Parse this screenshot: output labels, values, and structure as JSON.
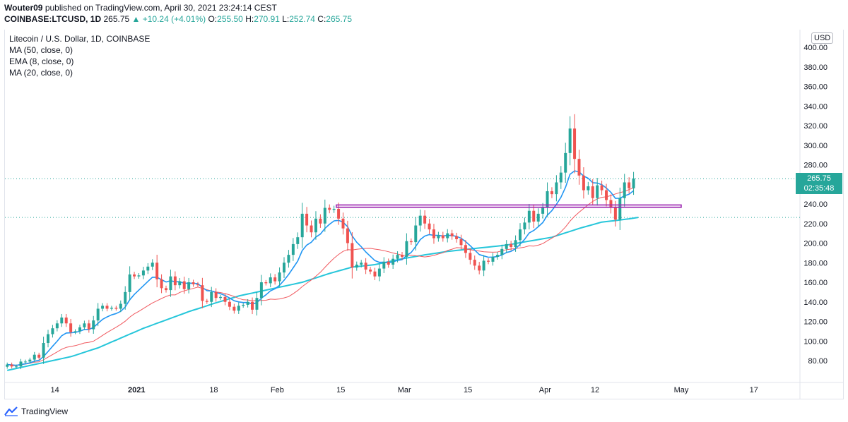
{
  "header": {
    "publisher": "Wouter09",
    "published_text": "published on TradingView.com, April 30, 2021 23:24:14 CEST",
    "symbol": "COINBASE:LTCUSD, 1D",
    "last": "265.75",
    "change": "▲ +10.24 (+4.01%)",
    "o_label": "O:",
    "o_value": "255.50",
    "h_label": "H:",
    "h_value": "270.91",
    "l_label": "L:",
    "l_value": "252.74",
    "c_label": "C:",
    "c_value": "265.75"
  },
  "legend": {
    "title": "Litecoin / U.S. Dollar, 1D, COINBASE",
    "indicators": [
      "MA (50, close, 0)",
      "EMA (8, close, 0)",
      "MA (20, close, 0)"
    ]
  },
  "price_axis": {
    "currency": "USD",
    "current_price": "265.75",
    "countdown": "02:35:48"
  },
  "footer": {
    "brand": "TradingView"
  },
  "colors": {
    "up": "#26a69a",
    "down": "#ef5350",
    "ema8": "#2196f3",
    "ma20": "#f0595f",
    "ma50": "#26c6da",
    "resistance": "#9c27b0",
    "support_dotted": "#26a69a"
  },
  "chart_data": {
    "type": "candlestick",
    "title": "Litecoin / U.S. Dollar, 1D, COINBASE",
    "ylim": [
      65,
      410
    ],
    "y_ticks": [
      80,
      100,
      120,
      140,
      160,
      180,
      200,
      220,
      240,
      260,
      280,
      300,
      320,
      340,
      360,
      380,
      400
    ],
    "x_tick_labels": [
      "14",
      "2021",
      "18",
      "Feb",
      "15",
      "Mar",
      "15",
      "Apr",
      "12",
      "May",
      "17"
    ],
    "x_tick_dates": [
      "2020-12-14",
      "2021-01-01",
      "2021-01-18",
      "2021-02-01",
      "2021-02-15",
      "2021-03-01",
      "2021-03-15",
      "2021-04-01",
      "2021-04-12",
      "2021-05-01",
      "2021-05-17"
    ],
    "x_range": [
      "2020-12-03",
      "2021-05-27"
    ],
    "candles_start": "2020-12-03",
    "closes": [
      76,
      74,
      74,
      79,
      79,
      81,
      86,
      83,
      98,
      107,
      113,
      118,
      124,
      118,
      109,
      110,
      114,
      118,
      112,
      121,
      133,
      136,
      133,
      134,
      133,
      138,
      150,
      168,
      166,
      167,
      172,
      176,
      180,
      163,
      154,
      152,
      166,
      157,
      161,
      153,
      160,
      158,
      157,
      141,
      140,
      150,
      144,
      145,
      140,
      135,
      131,
      136,
      137,
      140,
      132,
      144,
      160,
      159,
      165,
      161,
      170,
      180,
      188,
      199,
      206,
      230,
      218,
      211,
      225,
      220,
      236,
      234,
      235,
      225,
      215,
      200,
      175,
      178,
      180,
      173,
      171,
      166,
      174,
      181,
      178,
      184,
      188,
      186,
      202,
      201,
      218,
      228,
      220,
      214,
      205,
      208,
      205,
      210,
      207,
      204,
      198,
      190,
      183,
      177,
      172,
      182,
      181,
      186,
      188,
      194,
      199,
      196,
      203,
      214,
      221,
      233,
      222,
      230,
      236,
      253,
      250,
      262,
      272,
      292,
      317,
      286,
      269,
      254,
      258,
      246,
      259,
      254,
      244,
      236,
      224,
      246,
      262,
      256,
      266
    ],
    "series": [
      {
        "name": "EMA (8, close, 0)",
        "color": "#2196f3",
        "values": [
          76,
          75.6,
          75.2,
          76.0,
          76.7,
          77.7,
          79.5,
          80.2,
          84.2,
          89.3,
          94.6,
          99.8,
          105.4,
          108.2,
          108.4,
          108.8,
          110.0,
          111.8,
          111.8,
          113.8,
          118.1,
          122.1,
          124.6,
          126.7,
          128.1,
          130.3,
          134.7,
          142.1,
          147.6,
          152.0,
          156.5,
          160.9,
          165.2,
          165.1,
          162.7,
          160.3,
          161.6,
          160.5,
          160.6,
          158.9,
          159.1,
          158.9,
          158.6,
          154.7,
          151.4,
          151.1,
          149.5,
          148.3,
          146.5,
          143.9,
          141.1,
          140.0,
          139.3,
          139.4,
          137.8,
          139.1,
          143.8,
          147.2,
          151.2,
          153.4,
          157.0,
          162.1,
          167.9,
          174.8,
          181.7,
          192.4,
          198.0,
          200.9,
          206.2,
          209.2,
          215.0,
          219.2,
          222.7,
          223.2,
          221.4,
          216.7,
          207.4,
          200.9,
          196.3,
          191.0,
          186.6,
          182.1,
          180.4,
          180.5,
          179.9,
          180.8,
          182.4,
          183.1,
          187.3,
          190.4,
          196.6,
          203.6,
          207.2,
          208.7,
          207.9,
          207.9,
          207.3,
          207.9,
          207.7,
          206.9,
          204.9,
          201.6,
          197.4,
          192.9,
          188.3,
          186.9,
          185.6,
          185.7,
          186.2,
          187.9,
          190.4,
          191.6,
          194.2,
          198.9,
          203.8,
          210.3,
          212.9,
          216.7,
          221.0,
          228.4,
          233.2,
          239.6,
          246.8,
          256.9,
          270.3,
          273.8,
          272.7,
          268.5,
          266.2,
          261.7,
          261.3,
          259.7,
          256.3,
          251.8,
          245.7,
          245.8,
          248.3,
          249.9,
          253.5
        ]
      },
      {
        "name": "MA (20, close, 0)",
        "color": "#f0595f",
        "values": [
          76,
          75.0,
          74.7,
          75.8,
          76.4,
          77.2,
          78.4,
          78.8,
          80.9,
          83.5,
          86.2,
          88.9,
          91.6,
          93.5,
          94.4,
          95.3,
          96.6,
          98.0,
          98.7,
          99.8,
          102.6,
          105.7,
          108.7,
          111.4,
          114.1,
          117.0,
          120.2,
          124.4,
          127.8,
          130.3,
          133.2,
          136.1,
          138.9,
          141.1,
          143.4,
          145.5,
          147.1,
          147.1,
          149.6,
          151.2,
          152.6,
          153.7,
          155.1,
          153.7,
          152.4,
          151.1,
          150.1,
          149.5,
          148.5,
          147.1,
          145.5,
          143.6,
          142.1,
          141.9,
          141.1,
          141.5,
          141.5,
          141.6,
          142.8,
          142.5,
          143.0,
          144.1,
          145.4,
          148.3,
          151.6,
          155.6,
          159.0,
          162.3,
          166.2,
          170.2,
          175.2,
          180.1,
          184.6,
          188.4,
          191.6,
          193.4,
          193.0,
          193.7,
          194.2,
          194.6,
          194.7,
          193.9,
          193.2,
          192.3,
          191.2,
          189.9,
          188.8,
          187.7,
          187.4,
          187.7,
          187.1,
          186.6,
          185.9,
          186.5,
          187.4,
          188.9,
          190.1,
          192.5,
          193.8,
          195.4,
          195.2,
          194.3,
          193.2,
          192.5,
          191.9,
          191.2,
          190.9,
          190.7,
          190.9,
          192.2,
          193.3,
          193.9,
          194.6,
          195.1,
          195.9,
          197.2,
          197.0,
          197.9,
          199.5,
          202.4,
          205.1,
          207.9,
          211.6,
          216.4,
          222.4,
          227.4,
          231.6,
          235.3,
          239.2,
          242.6,
          245.2,
          246.8,
          247.3,
          248.6,
          250.2,
          251.6,
          252.7,
          254.7,
          256.4
        ]
      },
      {
        "name": "MA (50, close, 0)",
        "color": "#26c6da",
        "values": [
          70,
          71.0,
          72.0,
          73.0,
          74.0,
          75.0,
          76.0,
          77.0,
          78.0,
          79.0,
          80.0,
          81.0,
          82.0,
          83.0,
          84.0,
          85.5,
          87.0,
          88.5,
          90.0,
          91.5,
          93.0,
          95.0,
          97.0,
          99.0,
          101.0,
          103.0,
          105.0,
          107.0,
          109.0,
          111.0,
          113.0,
          114.7,
          116.4,
          118.1,
          119.8,
          121.5,
          123.2,
          124.9,
          126.6,
          128.3,
          130.0,
          131.5,
          133.0,
          134.5,
          136.0,
          137.5,
          139.0,
          140.4,
          141.8,
          143.2,
          144.6,
          146.0,
          147.0,
          148.0,
          149.0,
          150.0,
          151.0,
          152.0,
          153.0,
          154.0,
          155.0,
          156.0,
          157.0,
          158.0,
          159.0,
          160.0,
          161.5,
          163.0,
          164.5,
          166.0,
          167.5,
          169.0,
          170.3,
          171.6,
          172.9,
          174.2,
          175.5,
          176.0,
          176.5,
          177.0,
          177.5,
          178.0,
          179.0,
          180.0,
          181.0,
          182.0,
          183.0,
          184.0,
          184.8,
          185.6,
          186.4,
          187.2,
          188.0,
          188.7,
          189.4,
          190.1,
          190.8,
          191.5,
          192.0,
          192.5,
          193.0,
          193.5,
          194.0,
          194.5,
          195.0,
          195.5,
          196.0,
          196.5,
          197.0,
          197.5,
          198.0,
          198.8,
          199.6,
          200.4,
          201.2,
          202.0,
          202.8,
          203.6,
          204.4,
          205.2,
          206.0,
          207.5,
          209.0,
          210.5,
          212.0,
          213.5,
          215.0,
          216.3,
          217.6,
          218.9,
          220.2,
          221.5,
          222.0,
          222.5,
          223.0,
          223.6,
          224.2,
          224.8,
          225.5,
          226.2
        ]
      }
    ],
    "annotations": [
      {
        "kind": "resistance_box",
        "from": "2021-02-14",
        "to": "2021-05-01",
        "y_low": 236.5,
        "y_high": 239.0
      },
      {
        "kind": "horizontal_dotted",
        "y": 226.2
      },
      {
        "kind": "horizontal_dotted_last",
        "y": 265.75
      }
    ]
  }
}
